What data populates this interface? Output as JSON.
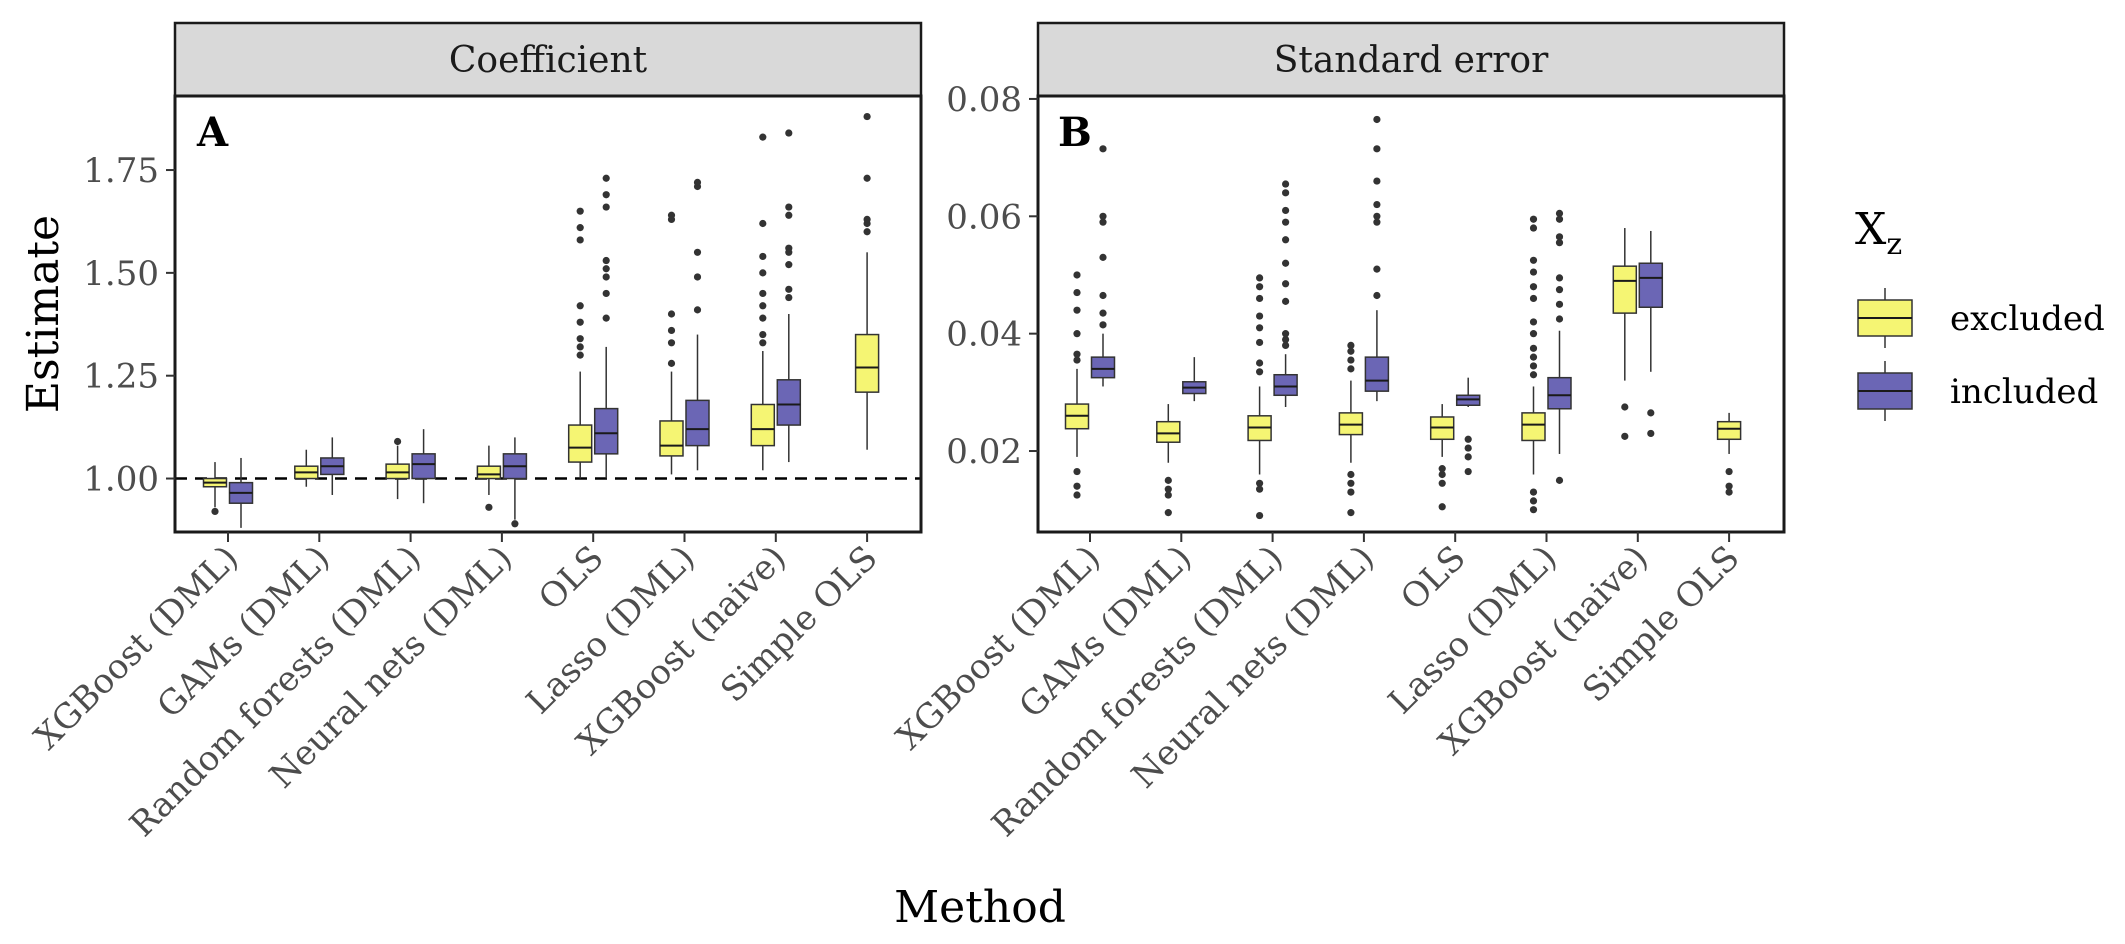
{
  "chart_data": {
    "type": "boxplot",
    "xlabel": "Method",
    "ylabel": "Estimate",
    "legend": {
      "title_main": "X",
      "title_sub": "z",
      "position": "right",
      "entries": [
        {
          "name": "excluded",
          "color": "#f5f573"
        },
        {
          "name": "included",
          "color": "#6b66b5"
        }
      ]
    },
    "categories": [
      "XGBoost (DML)",
      "GAMs (DML)",
      "Random forests (DML)",
      "Neural nets (DML)",
      "OLS",
      "Lasso (DML)",
      "XGBoost (naive)",
      "Simple OLS"
    ],
    "panels": [
      {
        "letter": "A",
        "strip": "Coefficient",
        "ylim": [
          0.87,
          1.93
        ],
        "yticks": [
          1.0,
          1.25,
          1.5,
          1.75
        ],
        "ytick_labels": [
          "1.00",
          "1.25",
          "1.50",
          "1.75"
        ],
        "reference_line": 1.0,
        "categories": [
          "XGBoost (DML)",
          "GAMs (DML)",
          "Random forests (DML)",
          "Neural nets (DML)",
          "OLS",
          "Lasso (DML)",
          "XGBoost (naive)",
          "Simple OLS"
        ],
        "series": [
          {
            "name": "excluded",
            "boxes": [
              {
                "lower": 0.93,
                "q1": 0.98,
                "median": 0.99,
                "q3": 1.0,
                "upper": 1.04,
                "outliers": [
                  0.92
                ]
              },
              {
                "lower": 0.98,
                "q1": 1.0,
                "median": 1.015,
                "q3": 1.03,
                "upper": 1.07,
                "outliers": []
              },
              {
                "lower": 0.95,
                "q1": 1.0,
                "median": 1.015,
                "q3": 1.035,
                "upper": 1.08,
                "outliers": [
                  1.09
                ]
              },
              {
                "lower": 0.96,
                "q1": 1.0,
                "median": 1.01,
                "q3": 1.03,
                "upper": 1.08,
                "outliers": [
                  0.93
                ]
              },
              {
                "lower": 1.0,
                "q1": 1.04,
                "median": 1.075,
                "q3": 1.13,
                "upper": 1.26,
                "outliers": [
                  1.3,
                  1.32,
                  1.34,
                  1.38,
                  1.42,
                  1.58,
                  1.61,
                  1.65
                ]
              },
              {
                "lower": 1.01,
                "q1": 1.055,
                "median": 1.08,
                "q3": 1.14,
                "upper": 1.26,
                "outliers": [
                  1.28,
                  1.33,
                  1.36,
                  1.4,
                  1.63,
                  1.64
                ]
              },
              {
                "lower": 1.02,
                "q1": 1.08,
                "median": 1.12,
                "q3": 1.18,
                "upper": 1.31,
                "outliers": [
                  1.33,
                  1.35,
                  1.39,
                  1.42,
                  1.45,
                  1.5,
                  1.54,
                  1.62,
                  1.83
                ]
              },
              {
                "lower": 1.07,
                "q1": 1.21,
                "median": 1.27,
                "q3": 1.35,
                "upper": 1.55,
                "outliers": [
                  1.6,
                  1.62,
                  1.63,
                  1.73,
                  1.88
                ]
              }
            ]
          },
          {
            "name": "included",
            "boxes": [
              {
                "lower": 0.88,
                "q1": 0.94,
                "median": 0.965,
                "q3": 0.99,
                "upper": 1.05,
                "outliers": []
              },
              {
                "lower": 0.96,
                "q1": 1.01,
                "median": 1.03,
                "q3": 1.05,
                "upper": 1.1,
                "outliers": []
              },
              {
                "lower": 0.94,
                "q1": 1.0,
                "median": 1.035,
                "q3": 1.06,
                "upper": 1.12,
                "outliers": []
              },
              {
                "lower": 0.9,
                "q1": 1.0,
                "median": 1.03,
                "q3": 1.06,
                "upper": 1.1,
                "outliers": [
                  0.89
                ]
              },
              {
                "lower": 1.0,
                "q1": 1.06,
                "median": 1.11,
                "q3": 1.17,
                "upper": 1.32,
                "outliers": [
                  1.39,
                  1.45,
                  1.49,
                  1.51,
                  1.53,
                  1.66,
                  1.69,
                  1.73
                ]
              },
              {
                "lower": 1.02,
                "q1": 1.08,
                "median": 1.12,
                "q3": 1.19,
                "upper": 1.35,
                "outliers": [
                  1.41,
                  1.49,
                  1.55,
                  1.71,
                  1.72
                ]
              },
              {
                "lower": 1.04,
                "q1": 1.13,
                "median": 1.18,
                "q3": 1.24,
                "upper": 1.4,
                "outliers": [
                  1.44,
                  1.46,
                  1.52,
                  1.55,
                  1.56,
                  1.64,
                  1.66,
                  1.84
                ]
              }
            ]
          }
        ]
      },
      {
        "letter": "B",
        "strip": "Standard error",
        "ylim": [
          0.0062,
          0.0805
        ],
        "yticks": [
          0.02,
          0.04,
          0.06,
          0.08
        ],
        "ytick_labels": [
          "0.02",
          "0.04",
          "0.06",
          "0.08"
        ],
        "reference_line": null,
        "categories": [
          "XGBoost (DML)",
          "GAMs (DML)",
          "Random forests (DML)",
          "Neural nets (DML)",
          "OLS",
          "Lasso (DML)",
          "XGBoost (naive)",
          "Simple OLS"
        ],
        "series": [
          {
            "name": "excluded",
            "boxes": [
              {
                "lower": 0.019,
                "q1": 0.0238,
                "median": 0.026,
                "q3": 0.028,
                "upper": 0.034,
                "outliers": [
                  0.0125,
                  0.014,
                  0.0165,
                  0.0355,
                  0.0365,
                  0.04,
                  0.044,
                  0.047,
                  0.05
                ]
              },
              {
                "lower": 0.018,
                "q1": 0.0215,
                "median": 0.023,
                "q3": 0.025,
                "upper": 0.028,
                "outliers": [
                  0.0095,
                  0.0125,
                  0.0135,
                  0.015
                ]
              },
              {
                "lower": 0.016,
                "q1": 0.0218,
                "median": 0.024,
                "q3": 0.026,
                "upper": 0.031,
                "outliers": [
                  0.009,
                  0.0135,
                  0.0145,
                  0.0335,
                  0.035,
                  0.0385,
                  0.041,
                  0.043,
                  0.046,
                  0.048,
                  0.0495
                ]
              },
              {
                "lower": 0.018,
                "q1": 0.0228,
                "median": 0.0245,
                "q3": 0.0265,
                "upper": 0.032,
                "outliers": [
                  0.0095,
                  0.013,
                  0.0145,
                  0.016,
                  0.034,
                  0.0355,
                  0.037,
                  0.038
                ]
              },
              {
                "lower": 0.019,
                "q1": 0.022,
                "median": 0.024,
                "q3": 0.0258,
                "upper": 0.028,
                "outliers": [
                  0.0105,
                  0.0145,
                  0.016,
                  0.017
                ]
              },
              {
                "lower": 0.016,
                "q1": 0.0218,
                "median": 0.0245,
                "q3": 0.0265,
                "upper": 0.031,
                "outliers": [
                  0.01,
                  0.0115,
                  0.013,
                  0.033,
                  0.0345,
                  0.036,
                  0.0375,
                  0.04,
                  0.042,
                  0.046,
                  0.048,
                  0.0505,
                  0.0525,
                  0.058,
                  0.0595
                ]
              },
              {
                "lower": 0.032,
                "q1": 0.0435,
                "median": 0.049,
                "q3": 0.0515,
                "upper": 0.058,
                "outliers": [
                  0.0225,
                  0.0275
                ]
              },
              {
                "lower": 0.0195,
                "q1": 0.022,
                "median": 0.0238,
                "q3": 0.025,
                "upper": 0.0265,
                "outliers": [
                  0.013,
                  0.014,
                  0.0165
                ]
              }
            ]
          },
          {
            "name": "included",
            "boxes": [
              {
                "lower": 0.031,
                "q1": 0.0325,
                "median": 0.034,
                "q3": 0.036,
                "upper": 0.04,
                "outliers": [
                  0.0415,
                  0.0435,
                  0.0465,
                  0.053,
                  0.059,
                  0.06,
                  0.0715
                ]
              },
              {
                "lower": 0.0285,
                "q1": 0.0298,
                "median": 0.0308,
                "q3": 0.0318,
                "upper": 0.036,
                "outliers": []
              },
              {
                "lower": 0.0275,
                "q1": 0.0295,
                "median": 0.031,
                "q3": 0.033,
                "upper": 0.0365,
                "outliers": [
                  0.038,
                  0.039,
                  0.04,
                  0.0455,
                  0.0485,
                  0.052,
                  0.056,
                  0.059,
                  0.061,
                  0.064,
                  0.0655
                ]
              },
              {
                "lower": 0.0285,
                "q1": 0.0302,
                "median": 0.032,
                "q3": 0.036,
                "upper": 0.044,
                "outliers": [
                  0.0465,
                  0.051,
                  0.059,
                  0.06,
                  0.062,
                  0.066,
                  0.0715,
                  0.0765
                ]
              },
              {
                "lower": 0.0275,
                "q1": 0.0278,
                "median": 0.0288,
                "q3": 0.0295,
                "upper": 0.0325,
                "outliers": [
                  0.0165,
                  0.019,
                  0.0205,
                  0.022
                ]
              },
              {
                "lower": 0.0195,
                "q1": 0.0272,
                "median": 0.0295,
                "q3": 0.0325,
                "upper": 0.0405,
                "outliers": [
                  0.015,
                  0.0425,
                  0.045,
                  0.0475,
                  0.0495,
                  0.0555,
                  0.0565,
                  0.0595,
                  0.0605
                ]
              },
              {
                "lower": 0.0335,
                "q1": 0.0445,
                "median": 0.0495,
                "q3": 0.052,
                "upper": 0.0575,
                "outliers": [
                  0.023,
                  0.0265
                ]
              }
            ]
          }
        ]
      }
    ]
  }
}
